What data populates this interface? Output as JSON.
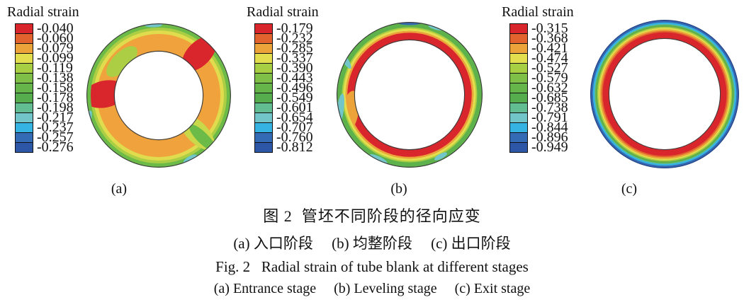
{
  "figure": {
    "caption_zh": "图 2  管坯不同阶段的径向应变",
    "caption_zh_sub": "(a) 入口阶段     (b) 均整阶段     (c) 出口阶段",
    "caption_en": "Fig. 2   Radial strain of tube blank at different stages",
    "caption_en_sub": "(a) Entrance stage     (b) Leveling stage     (c) Exit stage"
  },
  "palette": [
    "#d9262c",
    "#e2632e",
    "#eca43a",
    "#e3de4d",
    "#a8ce44",
    "#7fbf47",
    "#65b54b",
    "#55ad4e",
    "#62bd92",
    "#72c6c9",
    "#35b3e3",
    "#336cb4",
    "#2d57a6"
  ],
  "panels": [
    {
      "label": "(a)",
      "legend_title": "Radial strain",
      "values": [
        "-0.040",
        "-0.060",
        "-0.079",
        "-0.099",
        "-0.119",
        "-0.138",
        "-0.158",
        "-0.178",
        "-0.198",
        "-0.217",
        "-0.237",
        "-0.257",
        "-0.276"
      ]
    },
    {
      "label": "(b)",
      "legend_title": "Radial strain",
      "values": [
        "-0.179",
        "-0.232",
        "-0.285",
        "-0.337",
        "-0.390",
        "-0.443",
        "-0.496",
        "-0.549",
        "-0.601",
        "-0.654",
        "-0.707",
        "-0.760",
        "-0.812"
      ]
    },
    {
      "label": "(c)",
      "legend_title": "Radial strain",
      "values": [
        "-0.315",
        "-0.368",
        "-0.421",
        "-0.474",
        "-0.527",
        "-0.579",
        "-0.632",
        "-0.685",
        "-0.738",
        "-0.791",
        "-0.844",
        "-0.896",
        "-0.949"
      ]
    }
  ],
  "chart_data": [
    {
      "type": "heatmap",
      "subtype": "FEM contour on annular tube cross-section",
      "panel": "(a)",
      "stage_zh": "入口阶段",
      "stage_en": "Entrance stage",
      "variable": "Radial strain",
      "legend_ticks": [
        -0.04,
        -0.06,
        -0.079,
        -0.099,
        -0.119,
        -0.138,
        -0.158,
        -0.178,
        -0.198,
        -0.217,
        -0.237,
        -0.257,
        -0.276
      ],
      "value_range": [
        -0.276,
        -0.04
      ],
      "pattern": "orange mid-level body (≈ -0.08 to -0.10); yellow-green/green outer rim; red maxima (≈ -0.04 to -0.06) at 9 o'clock and 1 o'clock crossing to inner edge; green streak at 4:30; small cyan spots on outer edge"
    },
    {
      "type": "heatmap",
      "subtype": "FEM contour on annular tube cross-section",
      "panel": "(b)",
      "stage_zh": "均整阶段",
      "stage_en": "Leveling stage",
      "variable": "Radial strain",
      "legend_ticks": [
        -0.179,
        -0.232,
        -0.285,
        -0.337,
        -0.39,
        -0.443,
        -0.496,
        -0.549,
        -0.601,
        -0.654,
        -0.707,
        -0.76,
        -0.812
      ],
      "value_range": [
        -0.812,
        -0.179
      ],
      "pattern": "thick red core (≈ -0.18 to -0.23) from inner edge outward; thin orange/yellow transition; green outer band; cyan/blue slivers on outer rim (left, bottom, top)"
    },
    {
      "type": "heatmap",
      "subtype": "FEM contour on annular tube cross-section",
      "panel": "(c)",
      "stage_zh": "出口阶段",
      "stage_en": "Exit stage",
      "variable": "Radial strain",
      "legend_ticks": [
        -0.315,
        -0.368,
        -0.421,
        -0.474,
        -0.527,
        -0.579,
        -0.632,
        -0.685,
        -0.738,
        -0.791,
        -0.844,
        -0.896,
        -0.949
      ],
      "value_range": [
        -0.949,
        -0.315
      ],
      "pattern": "regular concentric rainbow bands: wide red at inner wall grading through orange, yellow, green, cyan to dark blue (≈ -0.95) at outer surface"
    }
  ]
}
